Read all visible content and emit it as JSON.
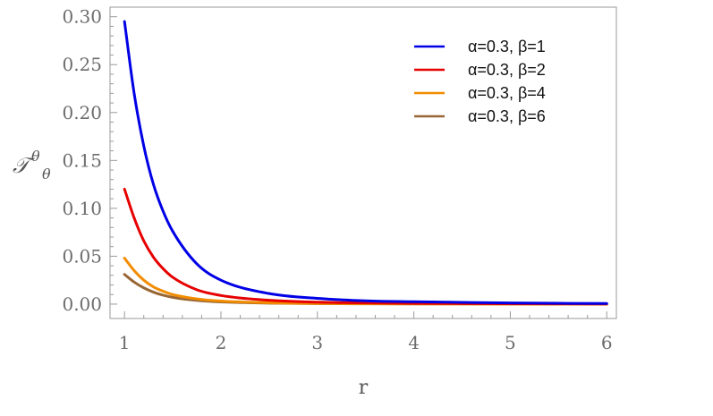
{
  "chart_data": {
    "type": "line",
    "xlabel": "r",
    "ylabel": {
      "base": "𝒯",
      "sup": "θ",
      "sub": "θ"
    },
    "xlim": [
      0.85,
      6.1
    ],
    "ylim": [
      -0.015,
      0.31
    ],
    "x_ticks": [
      1,
      2,
      3,
      4,
      5,
      6
    ],
    "x_tick_labels": [
      "1",
      "2",
      "3",
      "4",
      "5",
      "6"
    ],
    "y_ticks": [
      0.0,
      0.05,
      0.1,
      0.15,
      0.2,
      0.25,
      0.3
    ],
    "y_tick_labels": [
      "0.00",
      "0.05",
      "0.10",
      "0.15",
      "0.20",
      "0.25",
      "0.30"
    ],
    "grid": false,
    "legend_position": "top-right",
    "series": [
      {
        "name": "α=0.3, β=1",
        "color": "#0000e6",
        "x": [
          1.0,
          1.1,
          1.2,
          1.3,
          1.4,
          1.5,
          1.75,
          2.0,
          2.5,
          3.0,
          3.5,
          4.0,
          5.0,
          6.0
        ],
        "y": [
          0.295,
          0.22,
          0.165,
          0.125,
          0.097,
          0.076,
          0.042,
          0.025,
          0.011,
          0.006,
          0.0035,
          0.0025,
          0.0012,
          0.0006
        ]
      },
      {
        "name": "α=0.3, β=2",
        "color": "#e60000",
        "x": [
          1.0,
          1.1,
          1.2,
          1.3,
          1.4,
          1.5,
          1.75,
          2.0,
          2.5,
          3.0,
          3.5,
          4.0,
          5.0,
          6.0
        ],
        "y": [
          0.12,
          0.09,
          0.066,
          0.049,
          0.037,
          0.028,
          0.015,
          0.009,
          0.004,
          0.002,
          0.0012,
          0.0008,
          0.0004,
          0.0002
        ]
      },
      {
        "name": "α=0.3, β=4",
        "color": "#f28c00",
        "x": [
          1.0,
          1.1,
          1.2,
          1.3,
          1.4,
          1.5,
          1.75,
          2.0,
          2.5,
          3.0,
          3.5,
          4.0,
          5.0,
          6.0
        ],
        "y": [
          0.048,
          0.035,
          0.025,
          0.018,
          0.0135,
          0.01,
          0.0055,
          0.0032,
          0.0014,
          0.0007,
          0.0004,
          0.0003,
          0.0001,
          0.0001
        ]
      },
      {
        "name": "α=0.3, β=6",
        "color": "#996633",
        "x": [
          1.0,
          1.1,
          1.2,
          1.3,
          1.4,
          1.5,
          1.75,
          2.0,
          2.5,
          3.0,
          3.5,
          4.0,
          5.0,
          6.0
        ],
        "y": [
          0.031,
          0.023,
          0.017,
          0.0125,
          0.0093,
          0.0071,
          0.0039,
          0.0023,
          0.001,
          0.0005,
          0.0003,
          0.0002,
          0.0001,
          0.0
        ]
      }
    ]
  }
}
